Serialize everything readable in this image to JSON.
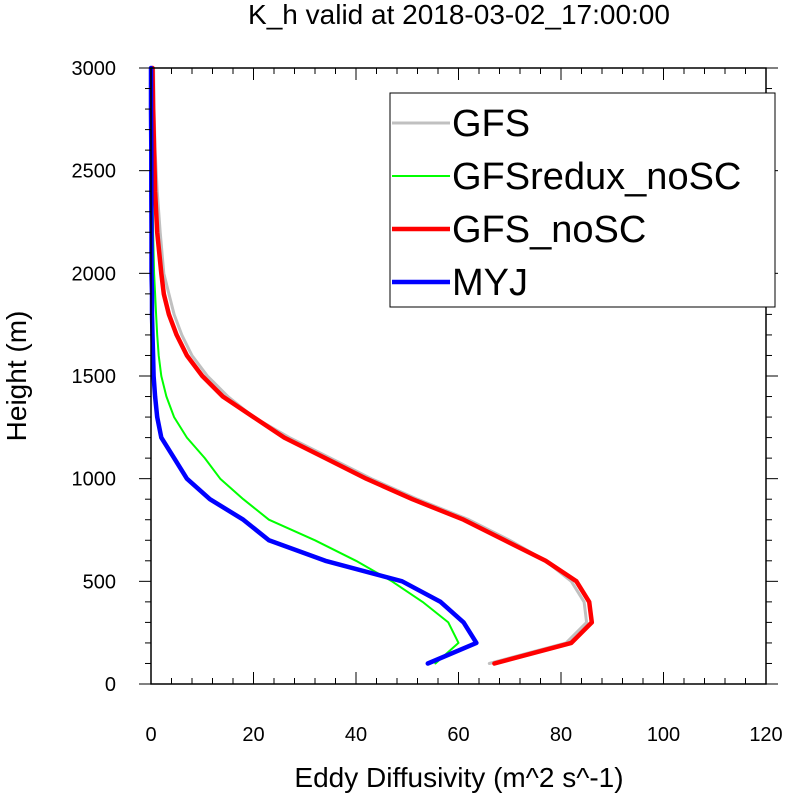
{
  "chart_data": {
    "type": "line",
    "title": "K_h valid at 2018-03-02_17:00:00",
    "xlabel": "Eddy Diffusivity (m^2 s^-1)",
    "ylabel": "Height (m)",
    "xlim": [
      0,
      120
    ],
    "ylim": [
      0,
      3000
    ],
    "x_ticks": [
      0,
      20,
      40,
      60,
      80,
      100,
      120
    ],
    "y_ticks": [
      0,
      500,
      1000,
      1500,
      2000,
      2500,
      3000
    ],
    "grid": false,
    "legend_position": "top-right",
    "series": [
      {
        "name": "GFS",
        "color": "#c0c0c0",
        "points": [
          [
            66,
            100
          ],
          [
            81,
            200
          ],
          [
            85,
            300
          ],
          [
            84.5,
            400
          ],
          [
            82,
            500
          ],
          [
            77,
            600
          ],
          [
            70,
            700
          ],
          [
            62,
            800
          ],
          [
            52,
            900
          ],
          [
            43,
            1000
          ],
          [
            35,
            1100
          ],
          [
            27,
            1200
          ],
          [
            20,
            1300
          ],
          [
            15,
            1400
          ],
          [
            11,
            1500
          ],
          [
            8,
            1600
          ],
          [
            6,
            1700
          ],
          [
            4.5,
            1800
          ],
          [
            3.5,
            1900
          ],
          [
            2.5,
            2000
          ],
          [
            1.8,
            2200
          ],
          [
            1.2,
            2400
          ],
          [
            0.8,
            2600
          ],
          [
            0.6,
            2800
          ],
          [
            0.5,
            3000
          ]
        ]
      },
      {
        "name": "GFSredux_noSC",
        "color": "#00ff00",
        "points": [
          [
            55.5,
            100
          ],
          [
            60,
            200
          ],
          [
            58,
            300
          ],
          [
            53,
            400
          ],
          [
            47,
            500
          ],
          [
            40,
            600
          ],
          [
            32,
            700
          ],
          [
            23,
            800
          ],
          [
            18,
            900
          ],
          [
            13.5,
            1000
          ],
          [
            10.5,
            1100
          ],
          [
            7,
            1200
          ],
          [
            4.5,
            1300
          ],
          [
            3,
            1400
          ],
          [
            2,
            1500
          ],
          [
            1.5,
            1600
          ],
          [
            1.2,
            1700
          ],
          [
            1,
            1800
          ],
          [
            0.8,
            1900
          ],
          [
            0.6,
            2000
          ],
          [
            0.4,
            2200
          ],
          [
            0.3,
            2400
          ],
          [
            0.2,
            2600
          ],
          [
            0.2,
            2800
          ],
          [
            0.1,
            3000
          ]
        ]
      },
      {
        "name": "GFS_noSC",
        "color": "#ff0000",
        "points": [
          [
            67,
            100
          ],
          [
            82,
            200
          ],
          [
            86,
            300
          ],
          [
            85.5,
            400
          ],
          [
            83,
            500
          ],
          [
            77,
            600
          ],
          [
            69,
            700
          ],
          [
            61,
            800
          ],
          [
            51,
            900
          ],
          [
            42,
            1000
          ],
          [
            34,
            1100
          ],
          [
            26,
            1200
          ],
          [
            20,
            1300
          ],
          [
            14,
            1400
          ],
          [
            10,
            1500
          ],
          [
            7,
            1600
          ],
          [
            5,
            1700
          ],
          [
            3.5,
            1800
          ],
          [
            2.5,
            1900
          ],
          [
            2,
            2000
          ],
          [
            1.2,
            2200
          ],
          [
            0.8,
            2400
          ],
          [
            0.6,
            2600
          ],
          [
            0.4,
            2800
          ],
          [
            0.3,
            3000
          ]
        ]
      },
      {
        "name": "MYJ",
        "color": "#0000ff",
        "points": [
          [
            54,
            100
          ],
          [
            63.5,
            200
          ],
          [
            61,
            300
          ],
          [
            56.5,
            400
          ],
          [
            49,
            500
          ],
          [
            34,
            600
          ],
          [
            23,
            700
          ],
          [
            18,
            800
          ],
          [
            11.5,
            900
          ],
          [
            7,
            1000
          ],
          [
            4.5,
            1100
          ],
          [
            2,
            1200
          ],
          [
            1.2,
            1300
          ],
          [
            0.8,
            1400
          ],
          [
            0.5,
            1500
          ],
          [
            0.4,
            1600
          ],
          [
            0.3,
            1700
          ],
          [
            0.2,
            1800
          ],
          [
            0.2,
            1900
          ],
          [
            0.1,
            2000
          ],
          [
            0.1,
            2200
          ],
          [
            0.05,
            2400
          ],
          [
            0.05,
            2600
          ],
          [
            0,
            2800
          ],
          [
            0,
            3000
          ]
        ]
      }
    ]
  }
}
